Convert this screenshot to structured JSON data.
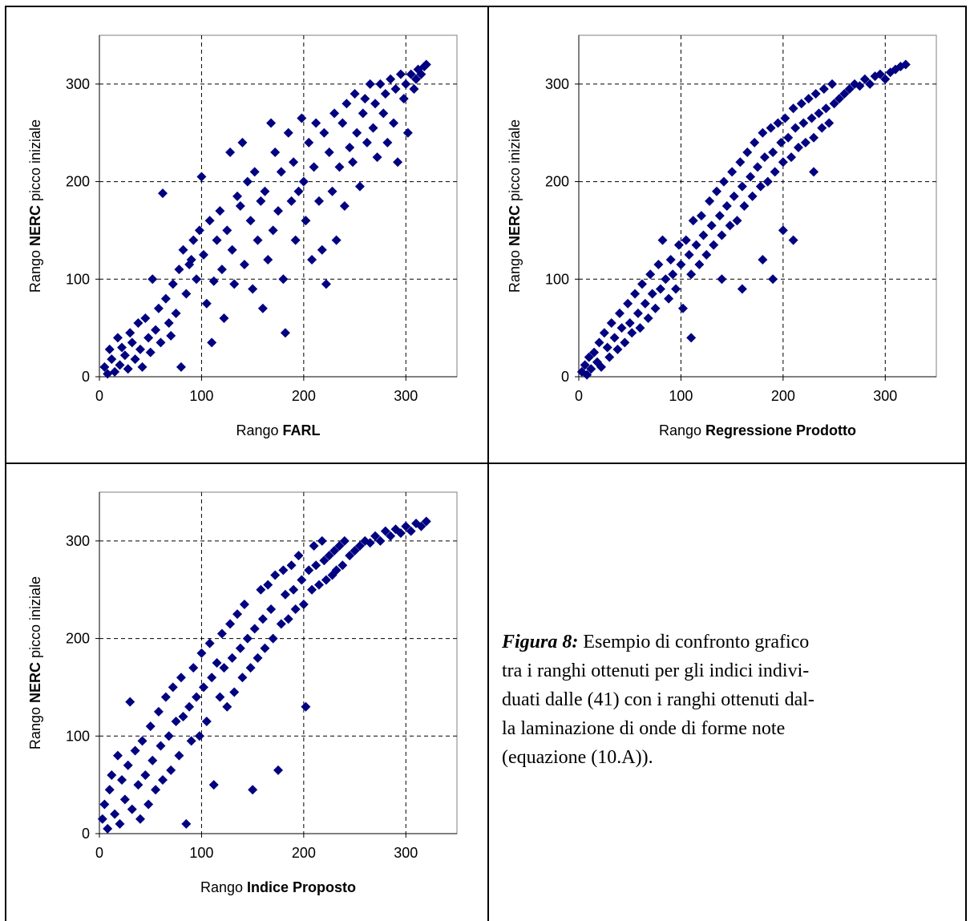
{
  "colors": {
    "marker": "#000080",
    "grid": "#000000",
    "axis": "#808080"
  },
  "caption": {
    "label": "Figura 8:",
    "lines": [
      " Esempio di confronto grafico",
      "tra i ranghi ottenuti per gli indici indivi-",
      "duati dalle (41) con i ranghi ottenuti dal-",
      "la laminazione di onde di forme note",
      "(equazione (10.A))."
    ]
  },
  "chart_data": [
    {
      "type": "scatter",
      "xlabel_prefix": "Rango ",
      "xlabel_bold": "FARL",
      "ylabel_prefix": "Rango ",
      "ylabel_bold": "NERC",
      "ylabel_suffix": " picco iniziale",
      "xlim": [
        0,
        350
      ],
      "ylim": [
        0,
        350
      ],
      "xticks": [
        "0",
        "100",
        "200",
        "300"
      ],
      "yticks": [
        "0",
        "100",
        "200",
        "300"
      ],
      "grid": true,
      "points": [
        [
          5,
          10
        ],
        [
          8,
          3
        ],
        [
          10,
          28
        ],
        [
          12,
          18
        ],
        [
          15,
          5
        ],
        [
          18,
          40
        ],
        [
          20,
          12
        ],
        [
          22,
          30
        ],
        [
          25,
          22
        ],
        [
          28,
          8
        ],
        [
          30,
          45
        ],
        [
          32,
          35
        ],
        [
          35,
          18
        ],
        [
          38,
          55
        ],
        [
          40,
          28
        ],
        [
          42,
          10
        ],
        [
          45,
          60
        ],
        [
          48,
          40
        ],
        [
          50,
          25
        ],
        [
          52,
          100
        ],
        [
          55,
          48
        ],
        [
          58,
          70
        ],
        [
          60,
          35
        ],
        [
          62,
          188
        ],
        [
          65,
          80
        ],
        [
          68,
          55
        ],
        [
          70,
          42
        ],
        [
          72,
          95
        ],
        [
          75,
          65
        ],
        [
          78,
          110
        ],
        [
          80,
          10
        ],
        [
          82,
          130
        ],
        [
          85,
          85
        ],
        [
          88,
          115
        ],
        [
          90,
          120
        ],
        [
          92,
          140
        ],
        [
          95,
          100
        ],
        [
          98,
          150
        ],
        [
          100,
          205
        ],
        [
          102,
          125
        ],
        [
          105,
          75
        ],
        [
          108,
          160
        ],
        [
          110,
          35
        ],
        [
          112,
          98
        ],
        [
          115,
          140
        ],
        [
          118,
          170
        ],
        [
          120,
          110
        ],
        [
          122,
          60
        ],
        [
          125,
          150
        ],
        [
          128,
          230
        ],
        [
          130,
          130
        ],
        [
          132,
          95
        ],
        [
          135,
          185
        ],
        [
          138,
          175
        ],
        [
          140,
          240
        ],
        [
          142,
          115
        ],
        [
          145,
          200
        ],
        [
          148,
          160
        ],
        [
          150,
          90
        ],
        [
          152,
          210
        ],
        [
          155,
          140
        ],
        [
          158,
          180
        ],
        [
          160,
          70
        ],
        [
          162,
          190
        ],
        [
          165,
          120
        ],
        [
          168,
          260
        ],
        [
          170,
          150
        ],
        [
          172,
          230
        ],
        [
          175,
          170
        ],
        [
          178,
          210
        ],
        [
          180,
          100
        ],
        [
          182,
          45
        ],
        [
          185,
          250
        ],
        [
          188,
          180
        ],
        [
          190,
          220
        ],
        [
          192,
          140
        ],
        [
          195,
          190
        ],
        [
          198,
          265
        ],
        [
          200,
          200
        ],
        [
          202,
          160
        ],
        [
          205,
          240
        ],
        [
          208,
          120
        ],
        [
          210,
          215
        ],
        [
          212,
          260
        ],
        [
          215,
          180
        ],
        [
          218,
          130
        ],
        [
          220,
          250
        ],
        [
          222,
          95
        ],
        [
          225,
          230
        ],
        [
          228,
          190
        ],
        [
          230,
          270
        ],
        [
          232,
          140
        ],
        [
          235,
          215
        ],
        [
          238,
          260
        ],
        [
          240,
          175
        ],
        [
          242,
          280
        ],
        [
          245,
          235
        ],
        [
          248,
          220
        ],
        [
          250,
          290
        ],
        [
          252,
          250
        ],
        [
          255,
          195
        ],
        [
          258,
          270
        ],
        [
          260,
          285
        ],
        [
          262,
          240
        ],
        [
          265,
          300
        ],
        [
          268,
          255
        ],
        [
          270,
          280
        ],
        [
          272,
          225
        ],
        [
          275,
          300
        ],
        [
          278,
          270
        ],
        [
          280,
          290
        ],
        [
          282,
          240
        ],
        [
          285,
          305
        ],
        [
          288,
          260
        ],
        [
          290,
          295
        ],
        [
          292,
          220
        ],
        [
          295,
          310
        ],
        [
          298,
          285
        ],
        [
          300,
          300
        ],
        [
          302,
          250
        ],
        [
          305,
          310
        ],
        [
          308,
          295
        ],
        [
          310,
          305
        ],
        [
          312,
          315
        ],
        [
          315,
          310
        ],
        [
          318,
          318
        ],
        [
          320,
          320
        ]
      ]
    },
    {
      "type": "scatter",
      "xlabel_prefix": "Rango ",
      "xlabel_bold": "Regressione Prodotto",
      "ylabel_prefix": "Rango ",
      "ylabel_bold": "NERC",
      "ylabel_suffix": " picco iniziale",
      "xlim": [
        0,
        350
      ],
      "ylim": [
        0,
        350
      ],
      "xticks": [
        "0",
        "100",
        "200",
        "300"
      ],
      "yticks": [
        "0",
        "100",
        "200",
        "300"
      ],
      "grid": true,
      "points": [
        [
          3,
          5
        ],
        [
          6,
          12
        ],
        [
          8,
          2
        ],
        [
          10,
          20
        ],
        [
          12,
          8
        ],
        [
          15,
          25
        ],
        [
          18,
          15
        ],
        [
          20,
          35
        ],
        [
          22,
          10
        ],
        [
          25,
          45
        ],
        [
          28,
          30
        ],
        [
          30,
          20
        ],
        [
          32,
          55
        ],
        [
          35,
          40
        ],
        [
          38,
          28
        ],
        [
          40,
          65
        ],
        [
          42,
          50
        ],
        [
          45,
          35
        ],
        [
          48,
          75
        ],
        [
          50,
          55
        ],
        [
          52,
          45
        ],
        [
          55,
          85
        ],
        [
          58,
          65
        ],
        [
          60,
          50
        ],
        [
          62,
          95
        ],
        [
          65,
          75
        ],
        [
          68,
          60
        ],
        [
          70,
          105
        ],
        [
          72,
          85
        ],
        [
          75,
          70
        ],
        [
          78,
          115
        ],
        [
          80,
          90
        ],
        [
          82,
          140
        ],
        [
          85,
          100
        ],
        [
          88,
          80
        ],
        [
          90,
          120
        ],
        [
          92,
          105
        ],
        [
          95,
          90
        ],
        [
          98,
          135
        ],
        [
          100,
          115
        ],
        [
          102,
          70
        ],
        [
          105,
          140
        ],
        [
          108,
          125
        ],
        [
          110,
          105
        ],
        [
          112,
          160
        ],
        [
          115,
          135
        ],
        [
          118,
          115
        ],
        [
          120,
          165
        ],
        [
          122,
          145
        ],
        [
          125,
          125
        ],
        [
          128,
          180
        ],
        [
          130,
          155
        ],
        [
          132,
          135
        ],
        [
          135,
          190
        ],
        [
          138,
          165
        ],
        [
          140,
          145
        ],
        [
          142,
          200
        ],
        [
          145,
          175
        ],
        [
          148,
          155
        ],
        [
          150,
          210
        ],
        [
          152,
          185
        ],
        [
          155,
          160
        ],
        [
          158,
          220
        ],
        [
          160,
          195
        ],
        [
          162,
          175
        ],
        [
          165,
          230
        ],
        [
          168,
          205
        ],
        [
          170,
          185
        ],
        [
          172,
          240
        ],
        [
          175,
          215
        ],
        [
          178,
          195
        ],
        [
          180,
          250
        ],
        [
          182,
          225
        ],
        [
          185,
          200
        ],
        [
          188,
          255
        ],
        [
          190,
          230
        ],
        [
          192,
          210
        ],
        [
          195,
          260
        ],
        [
          198,
          240
        ],
        [
          200,
          220
        ],
        [
          202,
          265
        ],
        [
          205,
          245
        ],
        [
          208,
          225
        ],
        [
          210,
          275
        ],
        [
          212,
          255
        ],
        [
          215,
          235
        ],
        [
          218,
          280
        ],
        [
          220,
          260
        ],
        [
          222,
          240
        ],
        [
          225,
          285
        ],
        [
          228,
          265
        ],
        [
          230,
          245
        ],
        [
          232,
          290
        ],
        [
          235,
          270
        ],
        [
          238,
          255
        ],
        [
          240,
          295
        ],
        [
          242,
          275
        ],
        [
          245,
          260
        ],
        [
          248,
          300
        ],
        [
          250,
          280
        ],
        [
          255,
          285
        ],
        [
          260,
          290
        ],
        [
          265,
          295
        ],
        [
          270,
          300
        ],
        [
          275,
          298
        ],
        [
          280,
          305
        ],
        [
          285,
          300
        ],
        [
          290,
          308
        ],
        [
          295,
          310
        ],
        [
          300,
          305
        ],
        [
          305,
          312
        ],
        [
          310,
          315
        ],
        [
          315,
          318
        ],
        [
          320,
          320
        ],
        [
          180,
          120
        ],
        [
          190,
          100
        ],
        [
          200,
          150
        ],
        [
          160,
          90
        ],
        [
          140,
          100
        ],
        [
          110,
          40
        ],
        [
          210,
          140
        ],
        [
          230,
          210
        ]
      ]
    },
    {
      "type": "scatter",
      "xlabel_prefix": "Rango ",
      "xlabel_bold": "Indice Proposto",
      "ylabel_prefix": "Rango ",
      "ylabel_bold": "NERC",
      "ylabel_suffix": " picco iniziale",
      "xlim": [
        0,
        350
      ],
      "ylim": [
        0,
        350
      ],
      "xticks": [
        "0",
        "100",
        "200",
        "300"
      ],
      "yticks": [
        "0",
        "100",
        "200",
        "300"
      ],
      "grid": true,
      "points": [
        [
          3,
          15
        ],
        [
          5,
          30
        ],
        [
          8,
          5
        ],
        [
          10,
          45
        ],
        [
          12,
          60
        ],
        [
          15,
          20
        ],
        [
          18,
          80
        ],
        [
          20,
          10
        ],
        [
          22,
          55
        ],
        [
          25,
          35
        ],
        [
          28,
          70
        ],
        [
          30,
          135
        ],
        [
          32,
          25
        ],
        [
          35,
          85
        ],
        [
          38,
          50
        ],
        [
          40,
          15
        ],
        [
          42,
          95
        ],
        [
          45,
          60
        ],
        [
          48,
          30
        ],
        [
          50,
          110
        ],
        [
          52,
          75
        ],
        [
          55,
          45
        ],
        [
          58,
          125
        ],
        [
          60,
          90
        ],
        [
          62,
          55
        ],
        [
          65,
          140
        ],
        [
          68,
          100
        ],
        [
          70,
          65
        ],
        [
          72,
          150
        ],
        [
          75,
          115
        ],
        [
          78,
          80
        ],
        [
          80,
          160
        ],
        [
          82,
          120
        ],
        [
          85,
          10
        ],
        [
          88,
          130
        ],
        [
          90,
          95
        ],
        [
          92,
          170
        ],
        [
          95,
          140
        ],
        [
          98,
          100
        ],
        [
          100,
          185
        ],
        [
          102,
          150
        ],
        [
          105,
          115
        ],
        [
          108,
          195
        ],
        [
          110,
          160
        ],
        [
          112,
          50
        ],
        [
          115,
          175
        ],
        [
          118,
          140
        ],
        [
          120,
          205
        ],
        [
          122,
          170
        ],
        [
          125,
          130
        ],
        [
          128,
          215
        ],
        [
          130,
          180
        ],
        [
          132,
          145
        ],
        [
          135,
          225
        ],
        [
          138,
          190
        ],
        [
          140,
          160
        ],
        [
          142,
          235
        ],
        [
          145,
          200
        ],
        [
          148,
          170
        ],
        [
          150,
          45
        ],
        [
          152,
          210
        ],
        [
          155,
          180
        ],
        [
          158,
          250
        ],
        [
          160,
          220
        ],
        [
          162,
          190
        ],
        [
          165,
          255
        ],
        [
          168,
          230
        ],
        [
          170,
          200
        ],
        [
          172,
          265
        ],
        [
          175,
          65
        ],
        [
          178,
          215
        ],
        [
          180,
          270
        ],
        [
          182,
          245
        ],
        [
          185,
          220
        ],
        [
          188,
          275
        ],
        [
          190,
          250
        ],
        [
          192,
          230
        ],
        [
          195,
          285
        ],
        [
          198,
          260
        ],
        [
          200,
          235
        ],
        [
          202,
          130
        ],
        [
          205,
          270
        ],
        [
          208,
          250
        ],
        [
          210,
          295
        ],
        [
          212,
          275
        ],
        [
          215,
          255
        ],
        [
          218,
          300
        ],
        [
          220,
          280
        ],
        [
          222,
          260
        ],
        [
          225,
          285
        ],
        [
          228,
          265
        ],
        [
          230,
          290
        ],
        [
          232,
          270
        ],
        [
          235,
          295
        ],
        [
          238,
          275
        ],
        [
          240,
          300
        ],
        [
          245,
          285
        ],
        [
          250,
          290
        ],
        [
          255,
          295
        ],
        [
          260,
          300
        ],
        [
          265,
          298
        ],
        [
          270,
          305
        ],
        [
          275,
          300
        ],
        [
          280,
          310
        ],
        [
          285,
          305
        ],
        [
          290,
          312
        ],
        [
          295,
          308
        ],
        [
          300,
          315
        ],
        [
          305,
          310
        ],
        [
          310,
          318
        ],
        [
          315,
          315
        ],
        [
          320,
          320
        ]
      ]
    }
  ]
}
